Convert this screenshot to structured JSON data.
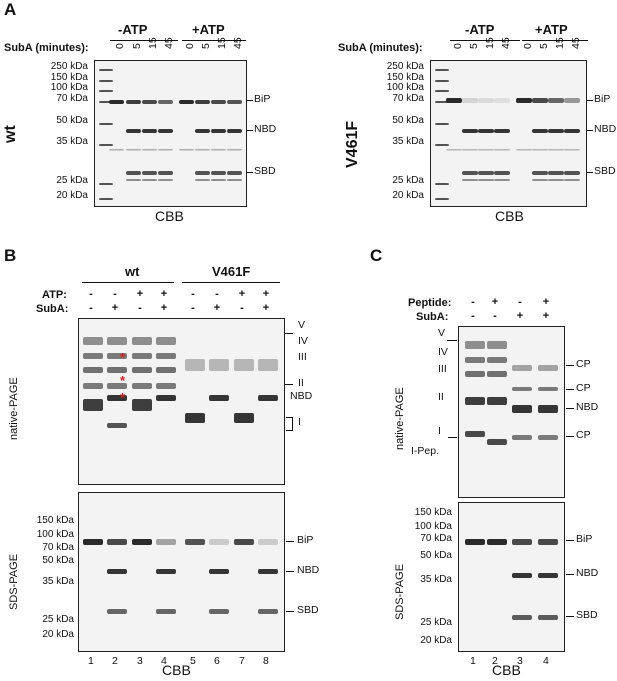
{
  "panel_a": {
    "label": "A",
    "wt": {
      "rowlabel": "SubA (minutes):",
      "conditions": [
        "-ATP",
        "+ATP"
      ],
      "lanes": [
        "0",
        "5",
        "15",
        "45",
        "0",
        "5",
        "15",
        "45"
      ],
      "markers": [
        "250 kDa",
        "150 kDa",
        "100 kDa",
        "70 kDa",
        "50 kDa",
        "35 kDa",
        "25 kDa",
        "20 kDa"
      ],
      "bands": [
        "BiP",
        "NBD",
        "SBD"
      ],
      "genotype": "wt",
      "stain": "CBB"
    },
    "mut": {
      "rowlabel": "SubA (minutes):",
      "conditions": [
        "-ATP",
        "+ATP"
      ],
      "lanes": [
        "0",
        "5",
        "15",
        "45",
        "0",
        "5",
        "15",
        "45"
      ],
      "markers": [
        "250 kDa",
        "150 kDa",
        "100 kDa",
        "70 kDa",
        "50 kDa",
        "35 kDa",
        "25 kDa",
        "20 kDa"
      ],
      "bands": [
        "BiP",
        "NBD",
        "SBD"
      ],
      "genotype": "V461F",
      "stain": "CBB"
    }
  },
  "panel_b": {
    "label": "B",
    "groups": [
      "wt",
      "V461F"
    ],
    "atp_label": "ATP:",
    "suba_label": "SubA:",
    "atp": [
      "-",
      "-",
      "+",
      "+",
      "-",
      "-",
      "+",
      "+"
    ],
    "suba": [
      "-",
      "+",
      "-",
      "+",
      "-",
      "+",
      "-",
      "+"
    ],
    "native_label": "native-PAGE",
    "native_bands": [
      "V",
      "IV",
      "III",
      "II",
      "NBD",
      "I"
    ],
    "sds_label": "SDS-PAGE",
    "sds_markers": [
      "150 kDa",
      "100 kDa",
      "70 kDa",
      "50 kDa",
      "35 kDa",
      "25 kDa",
      "20 kDa"
    ],
    "sds_bands": [
      "BiP",
      "NBD",
      "SBD"
    ],
    "lane_numbers": [
      "1",
      "2",
      "3",
      "4",
      "5",
      "6",
      "7",
      "8"
    ],
    "asterisk": "*",
    "stain": "CBB"
  },
  "panel_c": {
    "label": "C",
    "peptide_label": "Peptide:",
    "suba_label": "SubA:",
    "peptide": [
      "-",
      "+",
      "-",
      "+"
    ],
    "suba": [
      "-",
      "-",
      "+",
      "+"
    ],
    "native_label": "native-PAGE",
    "native_left": [
      "V",
      "IV",
      "III",
      "II",
      "I",
      "I-Pep."
    ],
    "native_right": [
      "CP",
      "CP",
      "NBD",
      "CP"
    ],
    "sds_label": "SDS-PAGE",
    "sds_markers": [
      "150 kDa",
      "100 kDa",
      "70 kDa",
      "50 kDa",
      "35 kDa",
      "25 kDa",
      "20 kDa"
    ],
    "sds_bands": [
      "BiP",
      "NBD",
      "SBD"
    ],
    "lane_numbers": [
      "1",
      "2",
      "3",
      "4"
    ],
    "stain": "CBB"
  },
  "colors": {
    "band": "#2a2a2a",
    "asterisk": "#d62020",
    "gel_bg": "#f3f3f3"
  }
}
